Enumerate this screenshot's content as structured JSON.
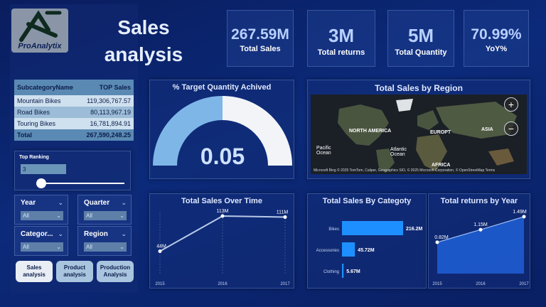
{
  "header": {
    "logo_text": "ProAnalytix",
    "title_line1": "Sales",
    "title_line2": "analysis"
  },
  "kpis": [
    {
      "value": "267.59M",
      "label": "Total Sales"
    },
    {
      "value": "3M",
      "label": "Total returns"
    },
    {
      "value": "5M",
      "label": "Total Quantity"
    },
    {
      "value": "70.99%",
      "label": "YoY%"
    }
  ],
  "table": {
    "headers": [
      "SubcategoryName",
      "TOP Sales"
    ],
    "rows": [
      {
        "name": "Mountain Bikes",
        "value": "119,306,767.57"
      },
      {
        "name": "Road Bikes",
        "value": "80,113,967.19"
      },
      {
        "name": "Touring Bikes",
        "value": "16,781,894.91"
      }
    ],
    "total": {
      "name": "Total",
      "value": "267,590,248.25"
    }
  },
  "ranking": {
    "label": "Top Ranking",
    "value": "3"
  },
  "filters": [
    {
      "label": "Year",
      "selected": "All"
    },
    {
      "label": "Quarter",
      "selected": "All"
    },
    {
      "label": "Categor...",
      "selected": "All"
    },
    {
      "label": "Region",
      "selected": "All"
    }
  ],
  "nav": [
    {
      "line1": "Sales",
      "line2": "analysis",
      "active": true
    },
    {
      "line1": "Product",
      "line2": "analysis",
      "active": false
    },
    {
      "line1": "Production",
      "line2": "Analysis",
      "active": false
    }
  ],
  "gauge": {
    "title": "% Target Quantity Achived",
    "value_label": "0.05",
    "fill_fraction": 0.5,
    "fill_color": "#7eb6e8",
    "rest_color": "#f2f4f8"
  },
  "map": {
    "title": "Total Sales by Region",
    "labels": {
      "north_america": "NORTH AMERICA",
      "europe": "EUROPT",
      "asia": "ASIA",
      "africa": "AFRICA",
      "pacific": "Pacific Ocean",
      "atlantic": "Atlantic Ocean"
    },
    "zoom_in": "+",
    "zoom_out": "−",
    "credit": "Microsoft Bing   © 2025 TomTom, Caliper, Geographics SIO, © 2025 Microsoft Corporation, © OpenStreetMap  Terms"
  },
  "chart_data": [
    {
      "type": "line",
      "title": "Total Sales Over Time",
      "categories": [
        "2015",
        "2016",
        "2017"
      ],
      "values": [
        44,
        113,
        111
      ],
      "value_labels": [
        "44M",
        "113M",
        "111M"
      ],
      "ylim": [
        0,
        120
      ]
    },
    {
      "type": "bar",
      "orientation": "horizontal",
      "title": "Total Sales By Categoty",
      "categories": [
        "Bikes",
        "Accessories",
        "Clothing"
      ],
      "values": [
        216.2,
        45.72,
        5.67
      ],
      "value_labels": [
        "216.2M",
        "45.72M",
        "5.67M"
      ],
      "bar_color": "#1e8fff"
    },
    {
      "type": "area",
      "title": "Total returns by Year",
      "categories": [
        "2015",
        "2016",
        "2017"
      ],
      "values": [
        0.82,
        1.15,
        1.49
      ],
      "value_labels": [
        "0.82M",
        "1.15M",
        "1.49M"
      ],
      "ylim": [
        0,
        1.6
      ],
      "fill_color": "#1f5fd6"
    }
  ]
}
